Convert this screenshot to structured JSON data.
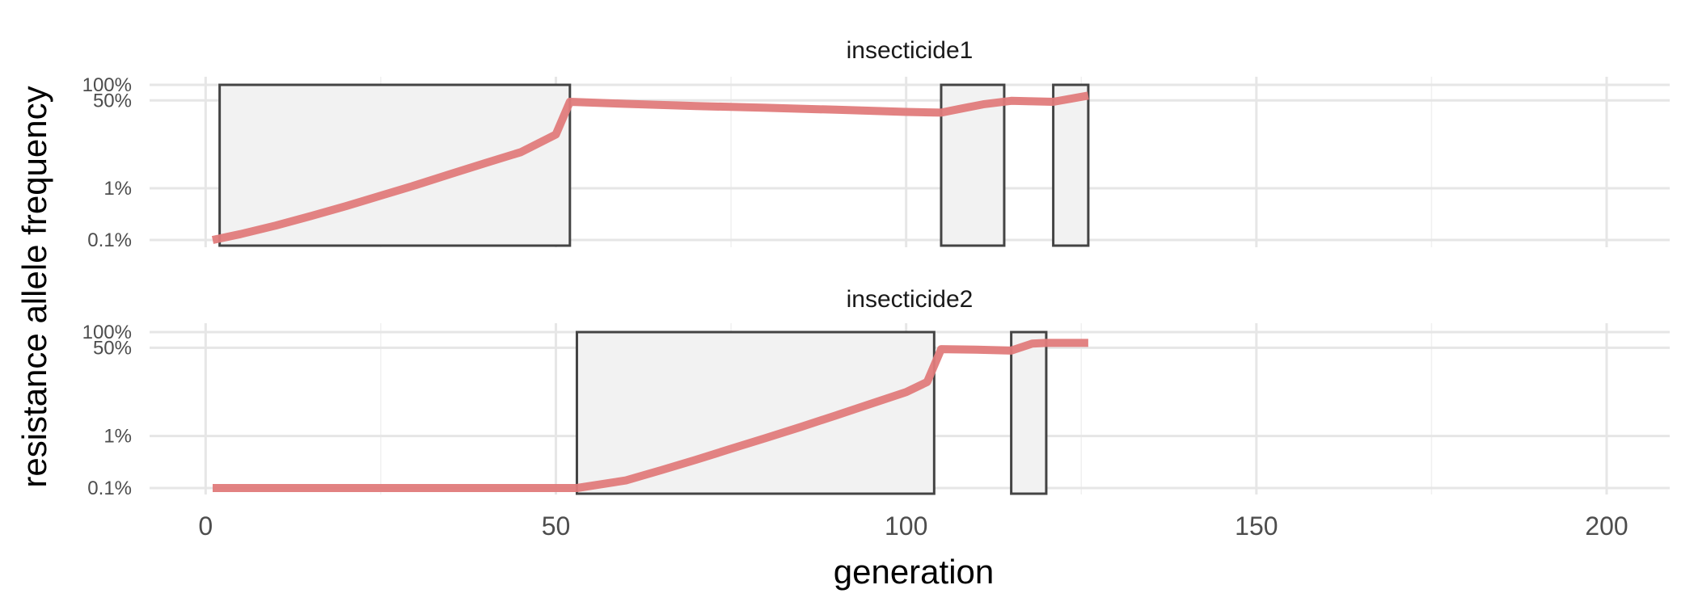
{
  "chart_data": {
    "type": "line",
    "xlabel": "generation",
    "ylabel": "resistance allele frequency",
    "xlim": [
      -8,
      209
    ],
    "x_ticks": [
      0,
      50,
      100,
      150,
      200
    ],
    "y_scale": "log",
    "y_ticks": [
      {
        "value": 0.001,
        "label": "0.1%"
      },
      {
        "value": 0.01,
        "label": "1%"
      },
      {
        "value": 0.5,
        "label": "50%"
      },
      {
        "value": 1.0,
        "label": "100%"
      }
    ],
    "grid": true,
    "line_color": "#e07b7b",
    "panels": [
      {
        "title": "insecticide1",
        "use_periods": [
          [
            2,
            52
          ],
          [
            105,
            114
          ],
          [
            121,
            126
          ]
        ],
        "series": [
          {
            "x": [
              1,
              5,
              10,
              15,
              20,
              25,
              30,
              35,
              40,
              45,
              48,
              50,
              52,
              60,
              70,
              80,
              90,
              100,
              105,
              108,
              111,
              115,
              118,
              121,
              126
            ],
            "y": [
              0.001,
              0.0013,
              0.0019,
              0.0029,
              0.0045,
              0.0072,
              0.0115,
              0.019,
              0.031,
              0.05,
              0.08,
              0.11,
              0.47,
              0.43,
              0.39,
              0.36,
              0.33,
              0.3,
              0.29,
              0.35,
              0.42,
              0.49,
              0.48,
              0.47,
              0.62
            ]
          }
        ]
      },
      {
        "title": "insecticide2",
        "use_periods": [
          [
            53,
            104
          ],
          [
            115,
            120
          ]
        ],
        "series": [
          {
            "x": [
              1,
              10,
              20,
              30,
              40,
              50,
              53,
              60,
              65,
              70,
              75,
              80,
              85,
              90,
              95,
              100,
              103,
              105,
              110,
              115,
              118,
              120,
              126
            ],
            "y": [
              0.001,
              0.001,
              0.001,
              0.001,
              0.001,
              0.001,
              0.001,
              0.0014,
              0.0022,
              0.0035,
              0.0057,
              0.0092,
              0.015,
              0.025,
              0.042,
              0.07,
              0.11,
              0.47,
              0.46,
              0.44,
              0.6,
              0.62,
              0.62
            ]
          }
        ]
      }
    ]
  }
}
